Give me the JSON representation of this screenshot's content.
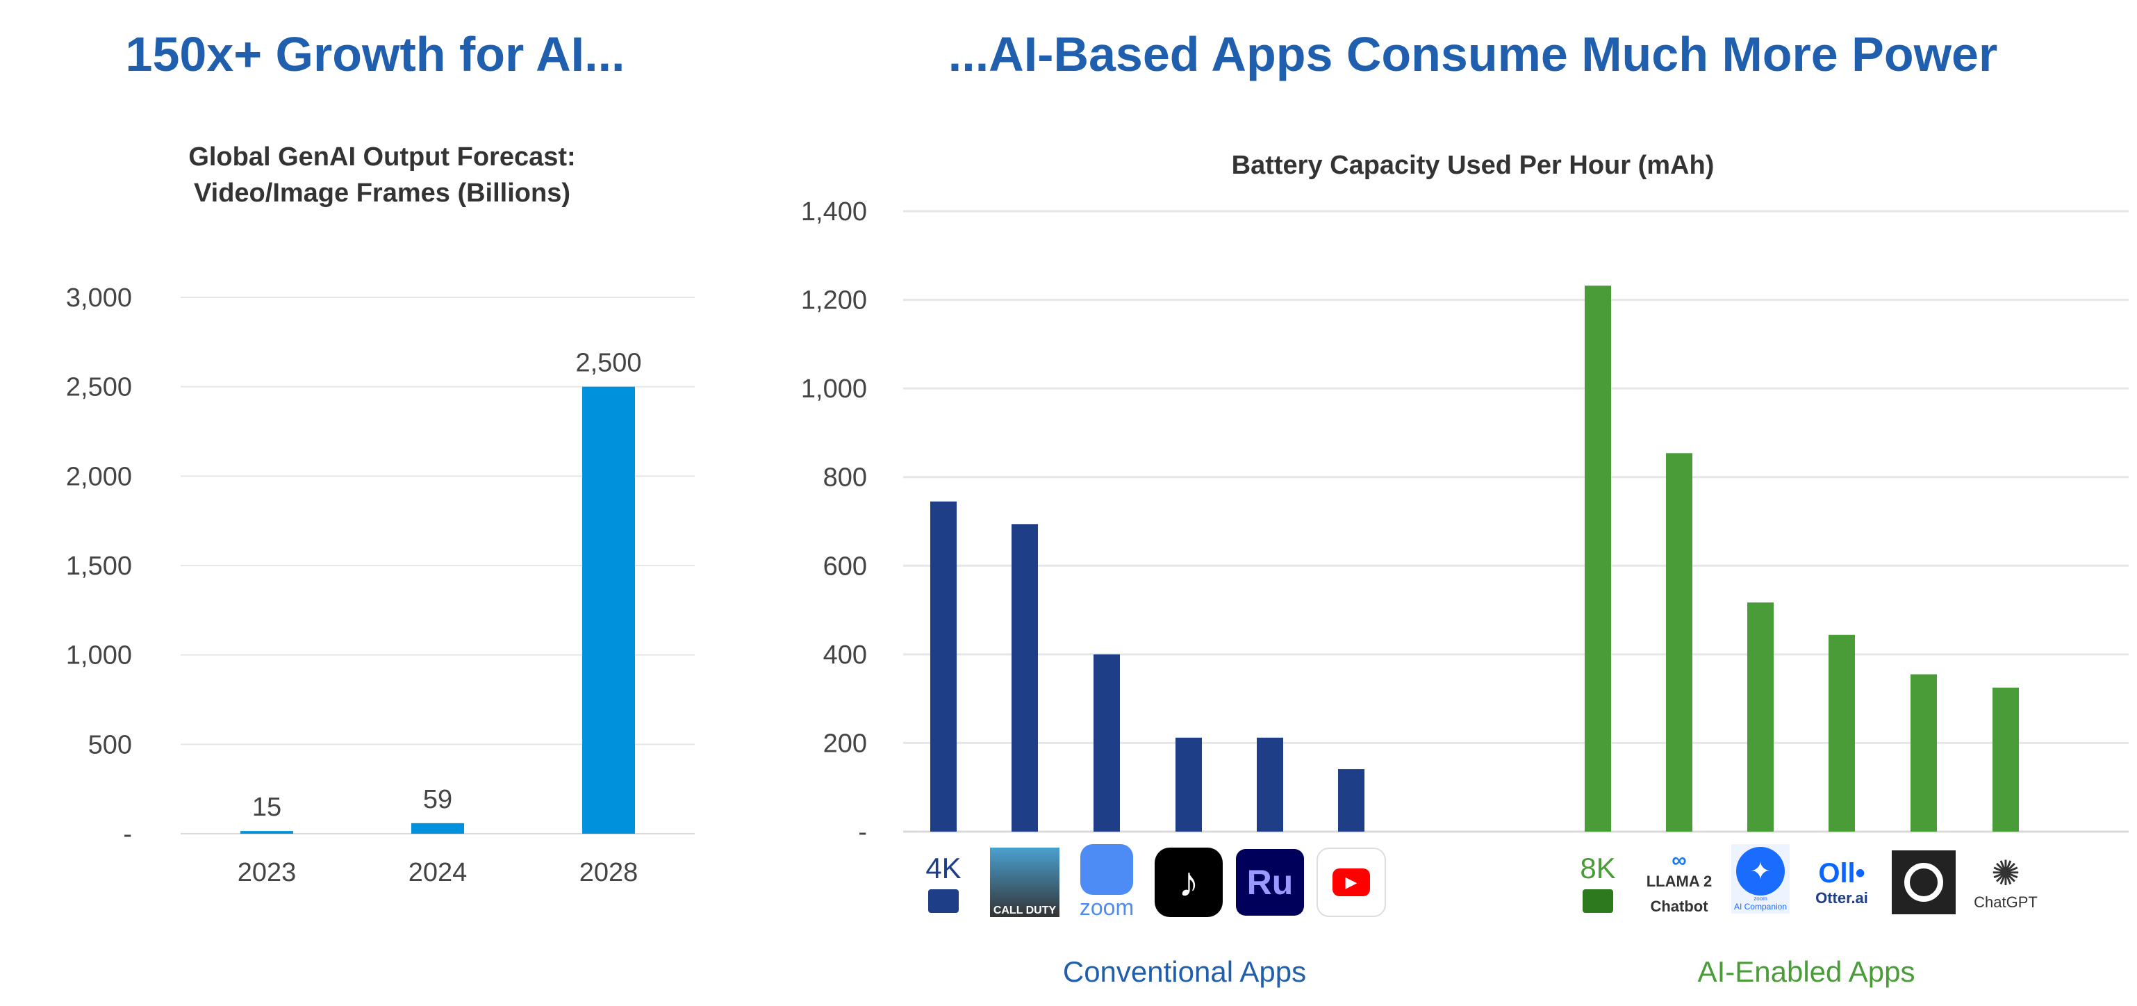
{
  "headline_left": "150x+ Growth for AI...",
  "headline_right": "...AI-Based Apps Consume Much More Power",
  "colors": {
    "headline": "#1f5fae",
    "left_bar": "#0091dc",
    "conventional": "#1e3f88",
    "ai": "#4a9c38",
    "grid": "#e6e6e6"
  },
  "chart_data": [
    {
      "type": "bar",
      "title": "Global GenAI Output Forecast: Video/Image Frames (Billions)",
      "title_lines": [
        "Global GenAI Output Forecast:",
        "Video/Image Frames (Billions)"
      ],
      "categories": [
        "2023",
        "2024",
        "2028"
      ],
      "values": [
        15,
        59,
        2500
      ],
      "data_labels": [
        "15",
        "59",
        "2,500"
      ],
      "ylim": [
        0,
        3000
      ],
      "yticks": [
        0,
        500,
        1000,
        1500,
        2000,
        2500,
        3000
      ],
      "ytick_labels": [
        "-",
        "500",
        "1,000",
        "1,500",
        "2,000",
        "2,500",
        "3,000"
      ],
      "grid": true
    },
    {
      "type": "bar",
      "title": "Battery Capacity Used Per Hour (mAh)",
      "ylim": [
        0,
        1400
      ],
      "yticks": [
        0,
        200,
        400,
        600,
        800,
        1000,
        1200,
        1400
      ],
      "ytick_labels": [
        "-",
        "200",
        "400",
        "600",
        "800",
        "1,000",
        "1,200",
        "1,400"
      ],
      "grid": true,
      "groups": [
        {
          "name": "Conventional Apps",
          "categories": [
            "4K video",
            "Call of Duty",
            "Zoom",
            "TikTok",
            "Adobe Rush",
            "YouTube"
          ],
          "values": [
            745,
            694,
            400,
            212,
            212,
            141
          ]
        },
        {
          "name": "AI-Enabled Apps",
          "categories": [
            "8K video",
            "Llama 2 Chatbot",
            "Zoom AI Companion",
            "Otter.ai",
            "Circle app",
            "ChatGPT"
          ],
          "values": [
            1232,
            854,
            517,
            444,
            355,
            325
          ]
        }
      ]
    }
  ],
  "icon_labels": {
    "k4": "4K",
    "cod": "CALL DUTY",
    "zoom": "zoom",
    "ru": "Ru",
    "k8": "8K",
    "llama": "LLAMA 2",
    "chatbot": "Chatbot",
    "zoomai_small": "zoom",
    "zoomai": "AI Companion",
    "otter": "Otter.ai",
    "chatgpt": "ChatGPT"
  }
}
